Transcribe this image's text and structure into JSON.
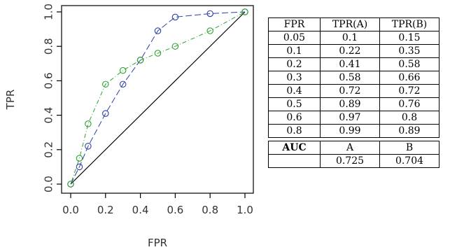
{
  "chart_data": {
    "type": "line",
    "xlabel": "FPR",
    "ylabel": "TPR",
    "xlim": [
      0,
      1
    ],
    "ylim": [
      0,
      1
    ],
    "x_ticks": [
      "0.0",
      "0.2",
      "0.4",
      "0.6",
      "0.8",
      "1.0"
    ],
    "y_ticks": [
      "0.0",
      "0.2",
      "0.4",
      "0.6",
      "0.8",
      "1.0"
    ],
    "grid": false,
    "diagonal_reference": [
      [
        0,
        0
      ],
      [
        1,
        1
      ]
    ],
    "series": [
      {
        "color": "#2a3fa8",
        "line_style": "dashed",
        "marker": "open-circle",
        "x": [
          0,
          0.05,
          0.1,
          0.2,
          0.3,
          0.4,
          0.5,
          0.6,
          0.8,
          1.0
        ],
        "y": [
          0,
          0.1,
          0.22,
          0.41,
          0.58,
          0.72,
          0.89,
          0.97,
          0.99,
          1.0
        ]
      },
      {
        "color": "#2fa32f",
        "line_style": "dotdash",
        "marker": "open-circle",
        "x": [
          0,
          0.05,
          0.1,
          0.2,
          0.3,
          0.4,
          0.5,
          0.6,
          0.8,
          1.0
        ],
        "y": [
          0,
          0.15,
          0.35,
          0.58,
          0.66,
          0.72,
          0.76,
          0.8,
          0.89,
          1.0
        ]
      }
    ]
  },
  "table": {
    "headers": [
      "FPR",
      "TPR(A)",
      "TPR(B)"
    ],
    "rows": [
      [
        "0.05",
        "0.1",
        "0.15"
      ],
      [
        "0.1",
        "0.22",
        "0.35"
      ],
      [
        "0.2",
        "0.41",
        "0.58"
      ],
      [
        "0.3",
        "0.58",
        "0.66"
      ],
      [
        "0.4",
        "0.72",
        "0.72"
      ],
      [
        "0.5",
        "0.89",
        "0.76"
      ],
      [
        "0.6",
        "0.97",
        "0.8"
      ],
      [
        "0.8",
        "0.99",
        "0.89"
      ]
    ],
    "auc_label": "AUC",
    "auc_headers": [
      "A",
      "B"
    ],
    "auc_values": [
      "0.725",
      "0.704"
    ]
  }
}
